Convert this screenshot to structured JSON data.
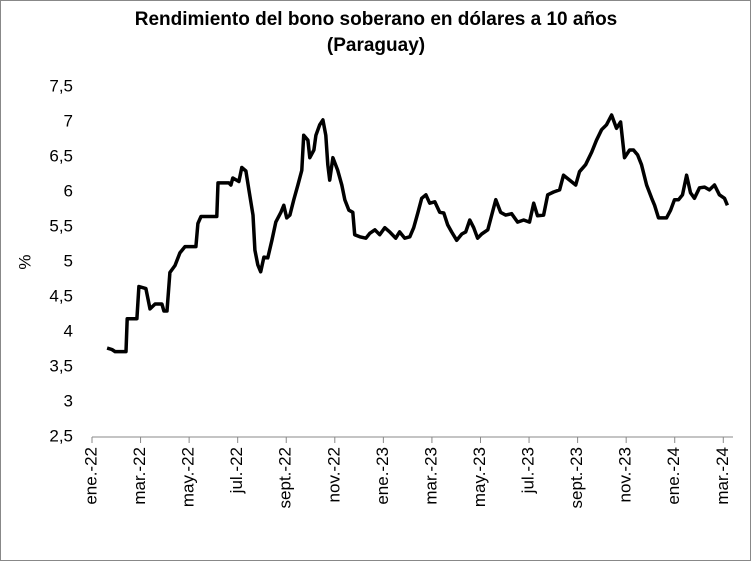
{
  "chart_data": {
    "type": "line",
    "title": [
      "Rendimiento del bono soberano en dólares a 10 años",
      "(Paraguay)"
    ],
    "ylabel": "%",
    "xlim": [
      0,
      26.4
    ],
    "ylim": [
      2.5,
      7.5
    ],
    "yticks": [
      {
        "value": 2.5,
        "label": "2,5"
      },
      3,
      {
        "value": 3.5,
        "label": "3,5"
      },
      4,
      {
        "value": 4.5,
        "label": "4,5"
      },
      5,
      {
        "value": 5.5,
        "label": "5,5"
      },
      6,
      {
        "value": 6.5,
        "label": "6,5"
      },
      7,
      {
        "value": 7.5,
        "label": "7,5"
      }
    ],
    "xticks": [
      {
        "value": 0,
        "label": "ene.-22"
      },
      {
        "value": 2,
        "label": "mar.-22"
      },
      {
        "value": 4,
        "label": "may.-22"
      },
      {
        "value": 6,
        "label": "jul.-22"
      },
      {
        "value": 8,
        "label": "sept.-22"
      },
      {
        "value": 10,
        "label": "nov.-22"
      },
      {
        "value": 12,
        "label": "ene.-23"
      },
      {
        "value": 14,
        "label": "mar.-23"
      },
      {
        "value": 16,
        "label": "may.-23"
      },
      {
        "value": 18,
        "label": "jul.-23"
      },
      {
        "value": 20,
        "label": "sept.-23"
      },
      {
        "value": 22,
        "label": "nov.-23"
      },
      {
        "value": 24,
        "label": "ene.-24"
      },
      {
        "value": 26,
        "label": "mar.-24"
      }
    ],
    "grid": false,
    "x": [
      0.62,
      0.82,
      0.95,
      1.4,
      1.45,
      1.85,
      1.93,
      2.22,
      2.39,
      2.6,
      2.88,
      2.96,
      3.09,
      3.21,
      3.42,
      3.62,
      3.83,
      4.28,
      4.36,
      4.49,
      5.14,
      5.19,
      5.64,
      5.72,
      5.8,
      6.05,
      6.17,
      6.34,
      6.46,
      6.63,
      6.71,
      6.83,
      6.95,
      7.08,
      7.24,
      7.41,
      7.57,
      7.78,
      7.9,
      8.02,
      8.15,
      8.31,
      8.48,
      8.64,
      8.72,
      8.89,
      8.97,
      9.14,
      9.22,
      9.38,
      9.51,
      9.63,
      9.71,
      9.79,
      9.92,
      10.12,
      10.29,
      10.41,
      10.58,
      10.74,
      10.82,
      11.03,
      11.28,
      11.44,
      11.65,
      11.85,
      12.06,
      12.26,
      12.51,
      12.67,
      12.88,
      13.09,
      13.25,
      13.42,
      13.58,
      13.75,
      13.91,
      14.12,
      14.32,
      14.49,
      14.65,
      14.81,
      15.02,
      15.23,
      15.39,
      15.56,
      15.72,
      15.88,
      16.05,
      16.3,
      16.46,
      16.63,
      16.83,
      17.04,
      17.28,
      17.53,
      17.78,
      18.02,
      18.19,
      18.35,
      18.6,
      18.77,
      19.01,
      19.26,
      19.42,
      19.67,
      19.92,
      20.08,
      20.33,
      20.58,
      20.78,
      20.99,
      21.19,
      21.4,
      21.6,
      21.77,
      21.93,
      22.14,
      22.3,
      22.47,
      22.63,
      22.84,
      23.05,
      23.17,
      23.33,
      23.5,
      23.66,
      23.83,
      23.99,
      24.16,
      24.32,
      24.49,
      24.65,
      24.81,
      25.02,
      25.23,
      25.43,
      25.64,
      25.84,
      26.05,
      26.17
    ],
    "series": [
      {
        "color": "#000000",
        "values": [
          3.77,
          3.75,
          3.72,
          3.72,
          4.19,
          4.19,
          4.65,
          4.62,
          4.33,
          4.4,
          4.4,
          4.3,
          4.3,
          4.85,
          4.95,
          5.13,
          5.22,
          5.22,
          5.55,
          5.65,
          5.65,
          6.13,
          6.13,
          6.1,
          6.2,
          6.15,
          6.35,
          6.3,
          6.03,
          5.67,
          5.17,
          4.96,
          4.86,
          5.07,
          5.06,
          5.31,
          5.57,
          5.71,
          5.81,
          5.63,
          5.67,
          5.89,
          6.1,
          6.31,
          6.81,
          6.74,
          6.49,
          6.6,
          6.81,
          6.96,
          7.03,
          6.81,
          6.39,
          6.17,
          6.49,
          6.31,
          6.1,
          5.89,
          5.74,
          5.71,
          5.39,
          5.36,
          5.34,
          5.41,
          5.46,
          5.39,
          5.49,
          5.43,
          5.34,
          5.43,
          5.34,
          5.36,
          5.49,
          5.7,
          5.91,
          5.96,
          5.84,
          5.86,
          5.71,
          5.7,
          5.53,
          5.43,
          5.31,
          5.4,
          5.43,
          5.6,
          5.49,
          5.34,
          5.4,
          5.46,
          5.67,
          5.89,
          5.71,
          5.67,
          5.69,
          5.57,
          5.6,
          5.57,
          5.84,
          5.66,
          5.67,
          5.96,
          6.0,
          6.03,
          6.24,
          6.17,
          6.1,
          6.29,
          6.39,
          6.57,
          6.74,
          6.89,
          6.96,
          7.1,
          6.91,
          7.0,
          6.49,
          6.6,
          6.6,
          6.53,
          6.39,
          6.1,
          5.91,
          5.81,
          5.63,
          5.63,
          5.63,
          5.74,
          5.89,
          5.89,
          5.96,
          6.24,
          5.99,
          5.91,
          6.06,
          6.07,
          6.03,
          6.1,
          5.96,
          5.91,
          5.81
        ]
      }
    ]
  }
}
